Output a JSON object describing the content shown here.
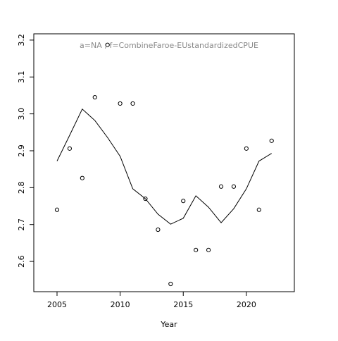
{
  "chart_data": {
    "type": "line_scatter",
    "annotation": "a=NA ; f=CombineFaroe-EUstandardizedCPUE",
    "x_label": "Year",
    "x": [
      2005,
      2006,
      2007,
      2008,
      2009,
      2010,
      2011,
      2012,
      2013,
      2014,
      2015,
      2016,
      2017,
      2018,
      2019,
      2020,
      2021,
      2022
    ],
    "series": [
      {
        "name": "observed",
        "color": "#000000",
        "marker": "circle",
        "values": [
          2.74,
          2.906,
          2.826,
          3.045,
          3.187,
          3.028,
          3.028,
          2.77,
          2.686,
          2.539,
          2.764,
          2.631,
          2.631,
          2.803,
          2.803,
          2.906,
          2.74,
          2.927
        ]
      },
      {
        "name": "fitted",
        "color": "#000000",
        "marker": "line",
        "values": [
          2.872,
          2.942,
          3.013,
          2.982,
          2.936,
          2.885,
          2.797,
          2.77,
          2.728,
          2.701,
          2.717,
          2.778,
          2.747,
          2.705,
          2.743,
          2.797,
          2.872,
          2.893
        ]
      }
    ],
    "xlim": [
      2003.16,
      2023.8
    ],
    "xticks": [
      2005,
      2010,
      2015,
      2020
    ],
    "ylim": [
      2.518,
      3.217
    ],
    "yticks": [
      2.6,
      2.7,
      2.8,
      2.9,
      3.0,
      3.1,
      3.2
    ]
  }
}
